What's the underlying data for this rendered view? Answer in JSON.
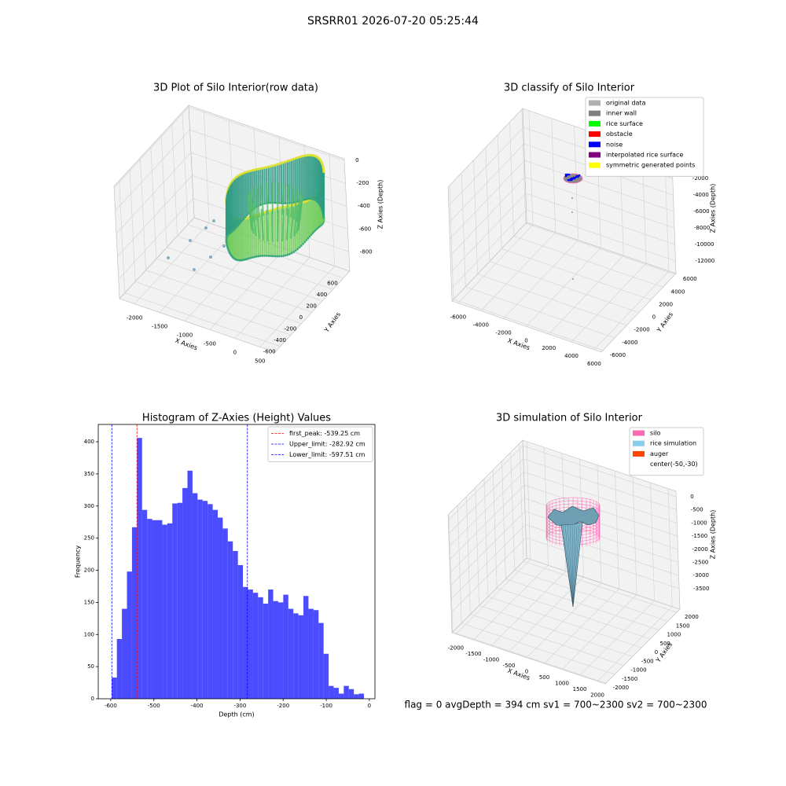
{
  "title": "SRSRR01 2026-07-20 05:25:44",
  "footer": "flag = 0    avgDepth = 394 cm  sv1 = 700~2300  sv2 = 700~2300",
  "chart_data": [
    {
      "type": "scatter3d",
      "title": "3D Plot of Silo Interior(row data)",
      "xlabel": "X Axies",
      "ylabel": "Y Axies",
      "zlabel": "Z Axies (Depth)",
      "xlim": [
        -2300,
        800
      ],
      "ylim": [
        -700,
        720
      ],
      "zlim": [
        -970,
        15
      ],
      "xticks": [
        -2000,
        -1500,
        -1000,
        -500,
        0,
        500
      ],
      "yticks": [
        -600,
        -400,
        -200,
        0,
        200,
        400,
        600
      ],
      "zticks": [
        0,
        -200,
        -400,
        -600,
        -800
      ]
    },
    {
      "type": "scatter3d",
      "title": "3D classify of Silo Interior",
      "xlabel": "X Axies",
      "ylabel": "Y Axies",
      "zlabel": "Z Axies (Depth)",
      "xlim": [
        -6550,
        6630
      ],
      "ylim": [
        -6250,
        6150
      ],
      "zlim": [
        -13520,
        290
      ],
      "xticks": [
        -6000,
        -4000,
        -2000,
        0,
        2000,
        4000,
        6000
      ],
      "yticks": [
        -6000,
        -4000,
        -2000,
        0,
        2000,
        4000,
        6000
      ],
      "zticks": [
        -2000,
        -4000,
        -6000,
        -8000,
        -10000,
        -12000
      ],
      "legend": [
        {
          "name": "original data",
          "color": "#b0b0b0"
        },
        {
          "name": "inner wall",
          "color": "#808080"
        },
        {
          "name": "rice surface",
          "color": "#00ff00"
        },
        {
          "name": "obstacle",
          "color": "#ff0000"
        },
        {
          "name": "noise",
          "color": "#0000ff"
        },
        {
          "name": "interpolated rice surface",
          "color": "#800080"
        },
        {
          "name": "symmetric generated points",
          "color": "#ffff00"
        }
      ]
    },
    {
      "type": "histogram",
      "title": "Histogram of Z-Axies (Height) Values",
      "xlabel": "Depth (cm)",
      "ylabel": "Frequency",
      "color": "#0000ff",
      "alpha": 0.7,
      "xlim": [
        -629,
        13
      ],
      "ylim": [
        0,
        427
      ],
      "xticks": [
        -600,
        -500,
        -400,
        -300,
        -200,
        -100,
        0
      ],
      "yticks": [
        0,
        50,
        100,
        150,
        200,
        250,
        300,
        350,
        400
      ],
      "bins": [
        -597.5,
        -585.8,
        -574.1,
        -562.4,
        -550.7,
        -539.0,
        -527.3,
        -515.6,
        -503.9,
        -492.2,
        -480.5,
        -468.8,
        -457.1,
        -445.4,
        -433.7,
        -422.0,
        -410.3,
        -398.6,
        -386.9,
        -375.2,
        -363.5,
        -351.8,
        -340.1,
        -328.4,
        -316.7,
        -305.0,
        -293.3,
        -281.6,
        -269.9,
        -258.2,
        -246.5,
        -234.8,
        -223.1,
        -211.4,
        -199.7,
        -188.0,
        -176.3,
        -164.6,
        -152.9,
        -141.2,
        -129.5,
        -117.8,
        -106.1,
        -94.4,
        -82.7,
        -71.0,
        -59.3,
        -47.6,
        -35.9,
        -24.2,
        -12.5
      ],
      "counts": [
        33,
        93,
        140,
        198,
        267,
        406,
        294,
        280,
        278,
        278,
        271,
        273,
        304,
        305,
        328,
        355,
        320,
        310,
        308,
        303,
        294,
        282,
        265,
        245,
        230,
        208,
        174,
        170,
        165,
        158,
        148,
        170,
        152,
        150,
        162,
        140,
        133,
        130,
        160,
        140,
        138,
        118,
        70,
        20,
        17,
        8,
        20,
        15,
        7,
        8
      ],
      "lines": [
        {
          "value": -539.25,
          "label": "first_peak: -539.25 cm",
          "color": "#ff0000"
        },
        {
          "value": -282.92,
          "label": "Upper_limit: -282.92 cm",
          "color": "#0000ff"
        },
        {
          "value": -597.51,
          "label": "Lower_limit: -597.51 cm",
          "color": "#0000ff"
        }
      ]
    },
    {
      "type": "surface3d",
      "title": "3D simulation of Silo Interior",
      "xlabel": "X Axies",
      "ylabel": "Y Axies",
      "zlabel": "Z Axies (Depth)",
      "xlim": [
        -2110,
        2220
      ],
      "ylim": [
        -2040,
        2180
      ],
      "zlim": [
        -4280,
        210
      ],
      "xticks": [
        -2000,
        -1500,
        -1000,
        -500,
        0,
        500,
        1000,
        1500,
        2000
      ],
      "yticks": [
        -2000,
        -1500,
        -1000,
        -500,
        0,
        500,
        1000,
        1500,
        2000
      ],
      "zticks": [
        0,
        -500,
        -1000,
        -1500,
        -2000,
        -2500,
        -3000,
        -3500
      ],
      "legend": [
        {
          "name": "silo",
          "color": "#ff69b4"
        },
        {
          "name": "rice simulation",
          "color": "#87ceeb"
        },
        {
          "name": "auger",
          "color": "#ff4500"
        },
        {
          "name": "center(-50,-30)",
          "color": "#ffffff"
        }
      ]
    }
  ]
}
